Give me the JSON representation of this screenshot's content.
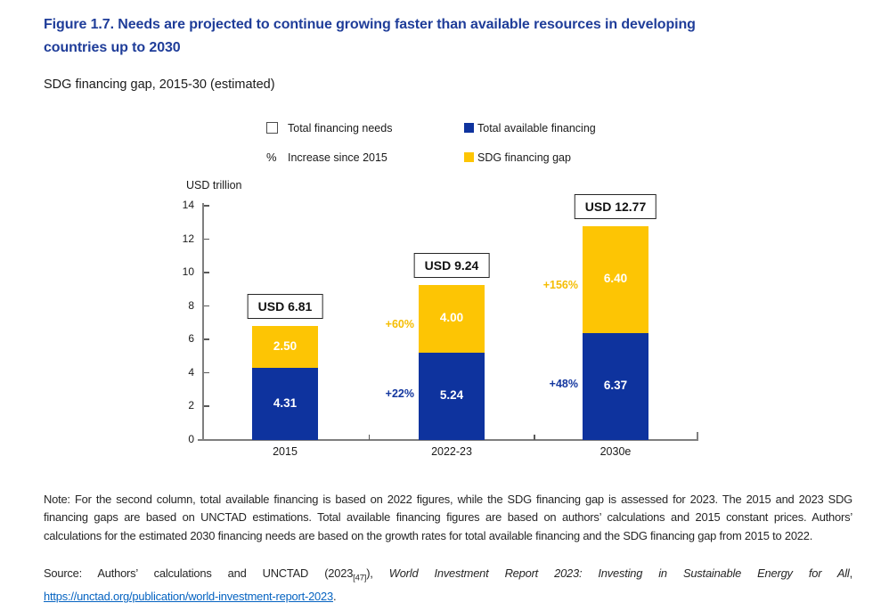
{
  "title": {
    "line1": "Figure 1.7. Needs are projected to continue growing faster than available resources in developing",
    "line2": "countries up to 2030"
  },
  "subtitle": "SDG financing gap, 2015-30 (estimated)",
  "legend": {
    "needs": {
      "label": "Total financing needs"
    },
    "increase": {
      "symbol": "%",
      "label": "Increase since 2015"
    },
    "available": {
      "label": "Total available financing"
    },
    "gap": {
      "label": "SDG financing gap"
    }
  },
  "chart_data": {
    "type": "bar",
    "stacked": true,
    "title": "SDG financing gap, 2015-30 (estimated)",
    "unit_label": "USD trillion",
    "categories": [
      "2015",
      "2022-23",
      "2030e"
    ],
    "series": [
      {
        "name": "Total available financing",
        "values": [
          4.31,
          5.24,
          6.37
        ],
        "increase_labels": [
          "",
          "+22%",
          "+48%"
        ]
      },
      {
        "name": "SDG financing gap",
        "values": [
          2.5,
          4.0,
          6.4
        ],
        "increase_labels": [
          "",
          "+60%",
          "+156%"
        ]
      }
    ],
    "totals": [
      "USD 6.81",
      "USD 9.24",
      "USD 12.77"
    ],
    "yticks": [
      0,
      2,
      4,
      6,
      8,
      10,
      12,
      14
    ],
    "ylim": [
      0,
      14
    ],
    "grid": false,
    "legend_position": "top"
  },
  "note": "Note: For the second column, total available financing is based on 2022 figures, while the SDG financing gap is assessed for 2023. The 2015 and 2023 SDG financing gaps are based on UNCTAD estimations. Total available financing figures are based on authors’ calculations and 2015 constant prices. Authors’ calculations for the estimated 2030 financing needs are based on the growth rates for total available financing and the SDG financing gap from 2015 to 2022.",
  "source": {
    "prefix": "Source: Authors’ calculations and UNCTAD (2023",
    "ref": "[47]",
    "after_ref": "), ",
    "work_title": "World Investment Report 2023: Investing in Sustainable Energy for All",
    "after_title": ", ",
    "link": "https://unctad.org/publication/world-investment-report-2023",
    "suffix": "."
  },
  "colors": {
    "title_blue": "#1f3d99",
    "total_available_financing": "#0e339e",
    "sdg_financing_gap": "#fdc504",
    "increase_available": "#14379f",
    "increase_gap": "#f5bd02",
    "axis": "#7f7f7f",
    "tick": "#595959",
    "bar_value_text": "#ffffff",
    "total_box_border": "#262626",
    "link": "#0563c1"
  }
}
